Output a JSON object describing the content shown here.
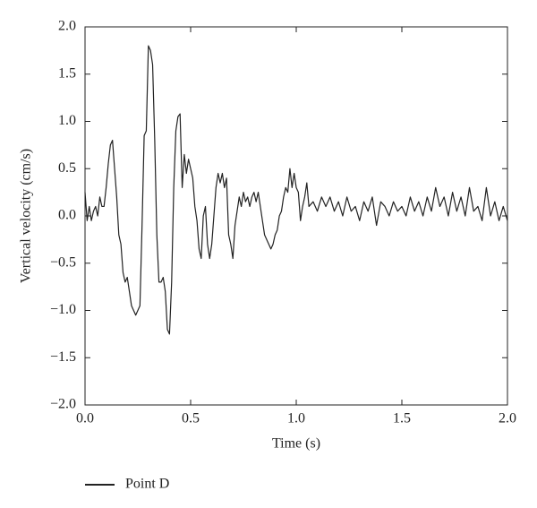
{
  "chart_data": {
    "type": "line",
    "x_label": "Time (s)",
    "y_label": "Vertical velocity (cm/s)",
    "xlim": [
      0,
      2
    ],
    "ylim": [
      -2,
      2
    ],
    "xticks": [
      {
        "value": 0,
        "label": "0.0"
      },
      {
        "value": 0.5,
        "label": "0.5"
      },
      {
        "value": 1,
        "label": "1.0"
      },
      {
        "value": 1.5,
        "label": "1.5"
      },
      {
        "value": 2,
        "label": "2.0"
      }
    ],
    "yticks": [
      {
        "value": -2,
        "label": "−2.0"
      },
      {
        "value": -1.5,
        "label": "−1.5"
      },
      {
        "value": -1,
        "label": "−1.0"
      },
      {
        "value": -0.5,
        "label": "−0.5"
      },
      {
        "value": 0,
        "label": "0.0"
      },
      {
        "value": 0.5,
        "label": "0.5"
      },
      {
        "value": 1,
        "label": "1.0"
      },
      {
        "value": 1.5,
        "label": "1.5"
      },
      {
        "value": 2,
        "label": "2.0"
      }
    ],
    "legend": "bottom-left",
    "series": [
      {
        "name": "Point D",
        "color": "#222222",
        "x": [
          0.0,
          0.01,
          0.02,
          0.03,
          0.04,
          0.05,
          0.06,
          0.07,
          0.08,
          0.09,
          0.1,
          0.11,
          0.12,
          0.13,
          0.14,
          0.15,
          0.16,
          0.17,
          0.18,
          0.19,
          0.2,
          0.21,
          0.22,
          0.23,
          0.24,
          0.25,
          0.26,
          0.27,
          0.28,
          0.29,
          0.3,
          0.31,
          0.32,
          0.33,
          0.34,
          0.35,
          0.36,
          0.37,
          0.38,
          0.39,
          0.4,
          0.41,
          0.42,
          0.43,
          0.44,
          0.45,
          0.46,
          0.47,
          0.48,
          0.49,
          0.5,
          0.51,
          0.52,
          0.53,
          0.54,
          0.55,
          0.56,
          0.57,
          0.58,
          0.59,
          0.6,
          0.61,
          0.62,
          0.63,
          0.64,
          0.65,
          0.66,
          0.67,
          0.68,
          0.69,
          0.7,
          0.71,
          0.72,
          0.73,
          0.74,
          0.75,
          0.76,
          0.77,
          0.78,
          0.79,
          0.8,
          0.81,
          0.82,
          0.83,
          0.84,
          0.85,
          0.86,
          0.87,
          0.88,
          0.89,
          0.9,
          0.91,
          0.92,
          0.93,
          0.94,
          0.95,
          0.96,
          0.97,
          0.98,
          0.99,
          1.0,
          1.01,
          1.02,
          1.03,
          1.04,
          1.05,
          1.06,
          1.08,
          1.1,
          1.12,
          1.14,
          1.16,
          1.18,
          1.2,
          1.22,
          1.24,
          1.26,
          1.28,
          1.3,
          1.32,
          1.34,
          1.36,
          1.38,
          1.4,
          1.42,
          1.44,
          1.46,
          1.48,
          1.5,
          1.52,
          1.54,
          1.56,
          1.58,
          1.6,
          1.62,
          1.64,
          1.66,
          1.68,
          1.7,
          1.72,
          1.74,
          1.76,
          1.78,
          1.8,
          1.82,
          1.84,
          1.86,
          1.88,
          1.9,
          1.92,
          1.94,
          1.96,
          1.98,
          2.0
        ],
        "values": [
          0.25,
          -0.05,
          0.1,
          -0.05,
          0.05,
          0.1,
          0.0,
          0.2,
          0.1,
          0.1,
          0.3,
          0.55,
          0.75,
          0.8,
          0.5,
          0.2,
          -0.2,
          -0.3,
          -0.6,
          -0.7,
          -0.65,
          -0.8,
          -0.95,
          -1.0,
          -1.05,
          -1.0,
          -0.95,
          -0.1,
          0.85,
          0.9,
          1.8,
          1.75,
          1.6,
          0.8,
          -0.2,
          -0.7,
          -0.7,
          -0.65,
          -0.8,
          -1.2,
          -1.25,
          -0.7,
          0.3,
          0.9,
          1.05,
          1.08,
          0.3,
          0.65,
          0.45,
          0.6,
          0.5,
          0.4,
          0.1,
          -0.05,
          -0.35,
          -0.45,
          0.0,
          0.1,
          -0.3,
          -0.45,
          -0.3,
          0.0,
          0.3,
          0.45,
          0.35,
          0.45,
          0.3,
          0.4,
          -0.2,
          -0.3,
          -0.45,
          -0.1,
          0.05,
          0.2,
          0.1,
          0.25,
          0.15,
          0.2,
          0.1,
          0.2,
          0.25,
          0.15,
          0.25,
          0.1,
          -0.05,
          -0.2,
          -0.25,
          -0.3,
          -0.35,
          -0.3,
          -0.2,
          -0.15,
          0.0,
          0.05,
          0.2,
          0.3,
          0.25,
          0.5,
          0.3,
          0.45,
          0.3,
          0.25,
          -0.05,
          0.1,
          0.2,
          0.35,
          0.1,
          0.15,
          0.05,
          0.2,
          0.1,
          0.2,
          0.05,
          0.15,
          0.0,
          0.2,
          0.05,
          0.1,
          -0.05,
          0.15,
          0.05,
          0.2,
          -0.1,
          0.15,
          0.1,
          0.0,
          0.15,
          0.05,
          0.1,
          0.0,
          0.2,
          0.05,
          0.15,
          0.0,
          0.2,
          0.05,
          0.3,
          0.1,
          0.2,
          0.0,
          0.25,
          0.05,
          0.2,
          0.0,
          0.3,
          0.05,
          0.1,
          -0.05,
          0.3,
          0.0,
          0.15,
          -0.05,
          0.1,
          -0.05
        ]
      }
    ]
  }
}
